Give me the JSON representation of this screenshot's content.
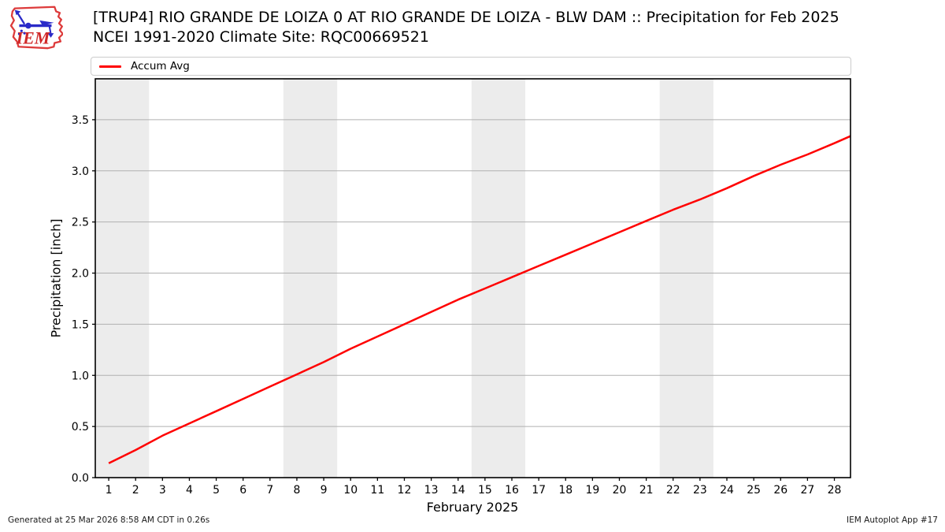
{
  "header": {
    "title_line1": "[TRUP4] RIO GRANDE DE LOIZA 0 AT RIO GRANDE DE LOIZA - BLW DAM :: Precipitation for Feb 2025",
    "title_line2": "NCEI 1991-2020 Climate Site: RQC00669521"
  },
  "logo": {
    "label": "IEM"
  },
  "legend": {
    "position": "top",
    "entries": [
      {
        "label": "Accum Avg",
        "color": "#ff0000"
      }
    ]
  },
  "chart_data": {
    "type": "line",
    "title": "[TRUP4] RIO GRANDE DE LOIZA 0 AT RIO GRANDE DE LOIZA - BLW DAM :: Precipitation for Feb 2025",
    "subtitle": "NCEI 1991-2020 Climate Site: RQC00669521",
    "xlabel": "February 2025",
    "ylabel": "Precipitation [inch]",
    "xlim": [
      0.5,
      28.6
    ],
    "ylim": [
      0,
      3.9
    ],
    "xticks": [
      1,
      2,
      3,
      4,
      5,
      6,
      7,
      8,
      9,
      10,
      11,
      12,
      13,
      14,
      15,
      16,
      17,
      18,
      19,
      20,
      21,
      22,
      23,
      24,
      25,
      26,
      27,
      28
    ],
    "yticks": [
      0.0,
      0.5,
      1.0,
      1.5,
      2.0,
      2.5,
      3.0,
      3.5
    ],
    "grid": "horizontal",
    "gridline_color": "#b0b0b0",
    "axis_color": "#000000",
    "weekend_bands": {
      "color": "#ececec",
      "ranges": [
        [
          0.5,
          2.5
        ],
        [
          7.5,
          9.5
        ],
        [
          14.5,
          16.5
        ],
        [
          21.5,
          23.5
        ]
      ]
    },
    "legend_position": "top",
    "series": [
      {
        "name": "Accum Avg",
        "color": "#ff0000",
        "width": 2.5,
        "x": [
          1,
          2,
          3,
          4,
          5,
          6,
          7,
          8,
          9,
          10,
          11,
          12,
          13,
          14,
          15,
          16,
          17,
          18,
          19,
          20,
          21,
          22,
          23,
          24,
          25,
          26,
          27,
          28,
          28.6
        ],
        "values": [
          0.14,
          0.27,
          0.41,
          0.53,
          0.65,
          0.77,
          0.89,
          1.01,
          1.13,
          1.26,
          1.38,
          1.5,
          1.62,
          1.74,
          1.85,
          1.96,
          2.07,
          2.18,
          2.29,
          2.4,
          2.51,
          2.62,
          2.72,
          2.83,
          2.95,
          3.06,
          3.16,
          3.27,
          3.34
        ]
      }
    ]
  },
  "footer": {
    "left": "Generated at 25 Mar 2026 8:58 AM CDT in 0.26s",
    "right": "IEM Autoplot App #17"
  }
}
